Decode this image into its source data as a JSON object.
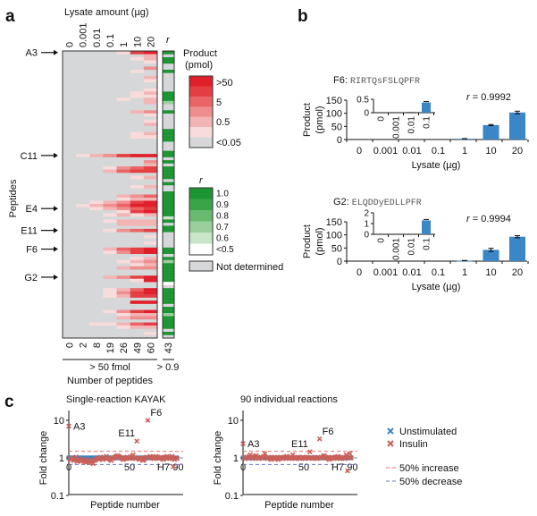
{
  "panel_labels": {
    "a": "a",
    "b": "b",
    "c": "c"
  },
  "panel_a": {
    "top_label": "Lysate amount (µg)",
    "columns": [
      "0",
      "0.001",
      "0.01",
      "0.1",
      "1",
      "10",
      "20"
    ],
    "r_header": "r",
    "y_label": "Peptides",
    "row_labels": [
      {
        "text": "A3",
        "row": 1
      },
      {
        "text": "C11",
        "row": 34
      },
      {
        "text": "E4",
        "row": 51
      },
      {
        "text": "E11",
        "row": 58
      },
      {
        "text": "F6",
        "row": 64
      },
      {
        "text": "G2",
        "row": 73
      }
    ],
    "rows": [
      "0000156:6",
      "0000002:0",
      "0000012:6",
      "0000001:6",
      "0000000:0",
      "0000003:0",
      "0000010:6",
      "0000000:0",
      "0000002:0",
      "0000001:0",
      "0000000:0",
      "0000000:0",
      "0000001:0",
      "0000012:6",
      "0000011:6",
      "0000102:6",
      "0000002:3",
      "0000000:0",
      "0000000:0",
      "0000023:6",
      "0000001:0",
      "0000000:0",
      "0000001:0",
      "0000002:0",
      "0000000:0",
      "0000000:6",
      "0000012:6",
      "0000011:6",
      "0000000:6",
      "0000000:0",
      "0000000:0",
      "0000000:0",
      "0000000:6",
      "0123566:6",
      "0000000:0",
      "0000003:6",
      "0000002:0",
      "0001345:6",
      "0002455:6",
      "0000000:6",
      "0000012:6",
      "0000000:0",
      "0000000:6",
      "0000012:0",
      "0000000:0",
      "0000000:6",
      "0000234:6",
      "0000122:6",
      "0012356:6",
      "0123466:6",
      "0012345:6",
      "0000156:6",
      "0001212:6",
      "0000000:2",
      "0001222:6",
      "0000222:0",
      "0000000:6",
      "0001345:6",
      "0000000:0",
      "0000001:0",
      "0000000:0",
      "0000001:0",
      "0000000:0",
      "0002456:6",
      "0001356:6",
      "0000000:0",
      "0000012:6",
      "0000123:3",
      "0000012:6",
      "0000233:6",
      "0000000:6",
      "0000000:6",
      "0002356:6",
      "0000016:6",
      "0000000:1",
      "0000000:0",
      "0001246:6",
      "0001356:6",
      "0001255:6",
      "0000000:6",
      "0000066:6",
      "0000000:0",
      "0000000:6",
      "0001356:6",
      "0000122:3",
      "0000233:6",
      "0000000:6",
      "0011245:6",
      "0000122:6",
      "0000000:0",
      "0000001:6",
      "0000000:0"
    ],
    "counts": [
      "0",
      "2",
      "8",
      "19",
      "26",
      "49",
      "60"
    ],
    "r_count": "43",
    "count_group_label": "> 50 fmol",
    "r_group_label": "> 0.9",
    "x_label": "Number of peptides",
    "product_legend": {
      "title1": "Product",
      "title2": "(pmol)",
      "colors": [
        "#e01f2b",
        "#e43e43",
        "#ea6465",
        "#ef8e8f",
        "#f3b4b5",
        "#f8dcdc",
        "#d5d7d9"
      ],
      "labels": [
        ">50",
        "5",
        "0.5",
        "<0.05"
      ]
    },
    "r_legend": {
      "title": "r",
      "colors": [
        "#1c9632",
        "#3aa548",
        "#69b970",
        "#99cf9c",
        "#c9e6c9",
        "#ffffff"
      ],
      "labels": [
        "1.0",
        "0.9",
        "0.8",
        "0.7",
        "0.6",
        "<0.5"
      ],
      "nd_color": "#d5d7d9",
      "nd_label": "Not determined"
    }
  },
  "chart_data": [
    {
      "type": "bar",
      "id": "F6",
      "title_prefix": "F6: ",
      "peptide": "RIRTQsFSLQPFR",
      "categories": [
        "0",
        "0.001",
        "0.01",
        "0.1",
        "1",
        "10",
        "20"
      ],
      "values": [
        0,
        0,
        0.02,
        0.38,
        3,
        55,
        103
      ],
      "errors": [
        0,
        0,
        0,
        0.01,
        0.5,
        2,
        5
      ],
      "ylim": [
        0,
        150
      ],
      "yticks": [
        "0",
        "50",
        "100",
        "150"
      ],
      "ylabel1": "Product",
      "ylabel2": "(pmol)",
      "xlabel": "Lysate (µg)",
      "r_text": "r",
      "r_value": " = 0.9992",
      "inset": {
        "categories": [
          "0",
          "0.001",
          "0.01",
          "0.1"
        ],
        "values": [
          0,
          0,
          0.02,
          0.38
        ],
        "ylim": [
          0,
          0.5
        ],
        "yticks": [
          "0",
          "0.5"
        ]
      },
      "color": "#3b86c6"
    },
    {
      "type": "bar",
      "id": "G2",
      "title_prefix": "G2: ",
      "peptide": "ELQDDyEDLLPFR",
      "categories": [
        "0",
        "0.001",
        "0.01",
        "0.1",
        "1",
        "10",
        "20"
      ],
      "values": [
        0,
        0,
        0,
        1.3,
        2,
        43,
        93
      ],
      "errors": [
        0,
        0,
        0,
        0.15,
        0.5,
        6,
        4
      ],
      "ylim": [
        0,
        150
      ],
      "yticks": [
        "0",
        "50",
        "100",
        "150"
      ],
      "ylabel1": "Product",
      "ylabel2": "(pmol)",
      "xlabel": "Lysate (µg)",
      "r_text": "r",
      "r_value": " = 0.9994",
      "inset": {
        "categories": [
          "0",
          "0.001",
          "0.01",
          "0.1"
        ],
        "values": [
          0,
          0,
          0,
          1.3
        ],
        "ylim": [
          0,
          2
        ],
        "yticks": [
          "0",
          "1",
          "2"
        ]
      },
      "color": "#3b86c6"
    },
    {
      "type": "scatter",
      "id": "single",
      "title": "Single-reaction KAYAK",
      "xlabel": "Peptide number",
      "ylabel": "Fold change",
      "yscale": "log",
      "ylim": [
        0.1,
        20
      ],
      "yticks": [
        "0.1",
        "1",
        "10"
      ],
      "xticks": [
        "0",
        "50",
        "90"
      ],
      "unstimulated_value": 1.0,
      "insulin": [
        7.0,
        0.95,
        0.9,
        1.0,
        0.85,
        0.9,
        1.05,
        0.8,
        0.85,
        0.9,
        0.8,
        0.95,
        0.85,
        0.8,
        0.75,
        0.8,
        0.9,
        0.75,
        0.85,
        0.8,
        0.7,
        0.85,
        0.9,
        1.0,
        0.95,
        0.9,
        1.05,
        1.0,
        0.9,
        0.95,
        1.0,
        1.1,
        1.0,
        0.95,
        0.9,
        0.85,
        0.95,
        1.0,
        1.05,
        1.1,
        1.15,
        1.1,
        1.05,
        1.0,
        0.95,
        0.9,
        0.95,
        1.0,
        1.05,
        1.0,
        0.95,
        1.0,
        1.1,
        1.2,
        1.0,
        0.95,
        2.8,
        1.0,
        0.9,
        0.95,
        1.0,
        0.85,
        0.9,
        1.0,
        1.05,
        10.0,
        1.0,
        1.1,
        1.05,
        1.0,
        0.95,
        1.05,
        1.1,
        1.0,
        0.95,
        1.0,
        1.05,
        0.95,
        0.9,
        1.0,
        1.05,
        1.1,
        1.0,
        0.95,
        1.0,
        1.1,
        0.58,
        0.9,
        1.0,
        0.95
      ],
      "annotations": [
        {
          "text": "A3",
          "index": 0
        },
        {
          "text": "E11",
          "index": 56
        },
        {
          "text": "F6",
          "index": 65
        },
        {
          "text": "H7",
          "index": 86
        }
      ]
    },
    {
      "type": "scatter",
      "id": "individual",
      "title": "90 individual reactions",
      "xlabel": "Peptide number",
      "ylabel": "Fold change",
      "yscale": "log",
      "ylim": [
        0.1,
        20
      ],
      "yticks": [
        "0.1",
        "1",
        "10"
      ],
      "xticks": [
        "0",
        "50",
        "90"
      ],
      "unstimulated_value": 1.0,
      "insulin": [
        2.4,
        1.0,
        0.95,
        1.05,
        1.0,
        1.1,
        1.2,
        1.0,
        0.95,
        1.05,
        1.1,
        1.15,
        1.0,
        0.95,
        1.0,
        1.05,
        1.0,
        1.1,
        1.3,
        1.0,
        0.95,
        1.05,
        1.0,
        0.9,
        0.95,
        1.0,
        1.05,
        1.0,
        0.95,
        0.9,
        1.0,
        1.05,
        1.0,
        0.95,
        1.0,
        1.05,
        1.1,
        1.0,
        0.95,
        1.0,
        1.05,
        1.2,
        1.0,
        0.95,
        1.0,
        1.05,
        1.0,
        0.95,
        1.0,
        1.05,
        1.0,
        0.95,
        1.0,
        1.05,
        1.0,
        1.45,
        1.0,
        0.95,
        1.0,
        1.05,
        1.0,
        0.95,
        1.0,
        3.2,
        1.05,
        1.0,
        1.1,
        1.15,
        1.05,
        1.0,
        0.95,
        0.9,
        1.0,
        1.05,
        1.0,
        0.95,
        1.0,
        1.05,
        1.1,
        1.0,
        0.95,
        1.0,
        1.05,
        1.0,
        0.95,
        1.2,
        0.45,
        1.0,
        1.3,
        1.0
      ],
      "annotations": [
        {
          "text": "A3",
          "index": 0
        },
        {
          "text": "E11",
          "index": 55
        },
        {
          "text": "F6",
          "index": 63
        },
        {
          "text": "H7",
          "index": 86
        }
      ]
    }
  ],
  "panel_c_legend": {
    "unstimulated": "Unstimulated",
    "insulin": "Insulin",
    "increase": "50% increase",
    "decrease": "50% decrease",
    "unstim_color": "#3b86c6",
    "insulin_color": "#c9605a",
    "increase_color": "#f06a6a",
    "decrease_color": "#6f75c9",
    "increase_value": 1.5,
    "decrease_value": 0.667
  }
}
